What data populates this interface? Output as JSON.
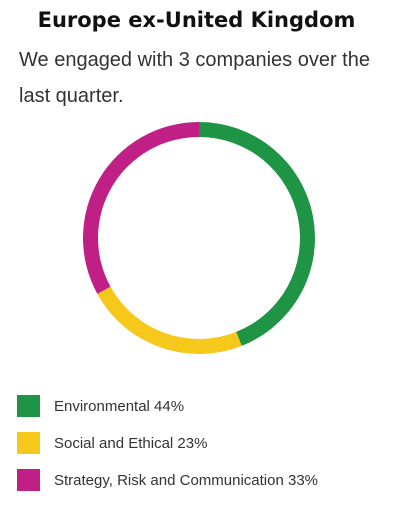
{
  "chart_data": {
    "type": "pie",
    "title": "Europe ex-United Kingdom",
    "subtitle": "We engaged with 3 companies over the last quarter.",
    "donut": true,
    "legend_position": "bottom-left",
    "series": [
      {
        "name": "Environmental",
        "value": 44,
        "label": "Environmental 44%",
        "color": "#1e9444"
      },
      {
        "name": "Social and Ethical",
        "value": 23,
        "label": "Social and Ethical 23%",
        "color": "#f6c81c"
      },
      {
        "name": "Strategy, Risk and Communication",
        "value": 33,
        "label": "Strategy, Risk and Communication 33%",
        "color": "#c01f85"
      }
    ]
  }
}
